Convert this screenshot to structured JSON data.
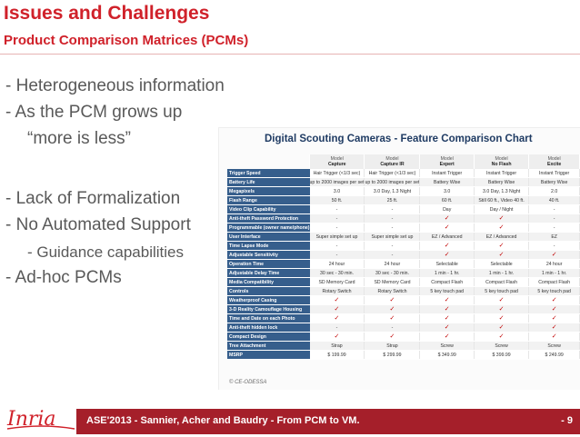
{
  "title": "Issues and Challenges",
  "subtitle": "Product Comparison Matrices (PCMs)",
  "bullets": {
    "b1": "- Heterogeneous information",
    "b2": "- As the PCM grows up",
    "b3": "“more is less”",
    "b4": "- Lack of Formalization",
    "b5": "- No Automated Support",
    "b6": "- Guidance capabilities",
    "b7": "- Ad-hoc PCMs"
  },
  "chart": {
    "title": "Digital Scouting Cameras - Feature Comparison Chart",
    "model_word": "Model",
    "models": [
      "Capture",
      "Capture IR",
      "Expert",
      "No Flash",
      "Excite"
    ],
    "rows": [
      {
        "label": "Trigger Speed",
        "values": [
          "Hair Trigger (<1/3 sec)",
          "Hair Trigger (<1/3 sec)",
          "Instant Trigger",
          "Instant Trigger",
          "Instant Trigger"
        ]
      },
      {
        "label": "Battery Life",
        "values": [
          "up to 2000 images per set",
          "up to 2000 images per set",
          "Battery Wise",
          "Battery Wise",
          "Battery Wise"
        ]
      },
      {
        "label": "Megapixels",
        "values": [
          "3.0",
          "3.0 Day, 1.3 Night",
          "3.0",
          "3.0 Day, 1.3 Night",
          "2.0"
        ]
      },
      {
        "label": "Flash Range",
        "values": [
          "50 ft.",
          "25 ft.",
          "60 ft.",
          "Still 60 ft., Video 40 ft.",
          "40 ft."
        ]
      },
      {
        "label": "Video Clip Capability",
        "values": [
          "-",
          "-",
          "Day",
          "Day / Night",
          "-"
        ]
      },
      {
        "label": "Anti-theft Password Protection",
        "values": [
          "-",
          "-",
          "✓",
          "✓",
          "-"
        ]
      },
      {
        "label": "Programmable (owner name/phone)",
        "values": [
          "-",
          "-",
          "✓",
          "✓",
          "-"
        ]
      },
      {
        "label": "User Interface",
        "values": [
          "Super simple set up",
          "Super simple set up",
          "EZ / Advanced",
          "EZ / Advanced",
          "EZ"
        ]
      },
      {
        "label": "Time Lapse Mode",
        "values": [
          "-",
          "-",
          "✓",
          "✓",
          "-"
        ]
      },
      {
        "label": "Adjustable Sensitivity",
        "values": [
          "-",
          "-",
          "✓",
          "✓",
          "✓"
        ]
      },
      {
        "label": "Operation Time",
        "values": [
          "24 hour",
          "24 hour",
          "Selectable",
          "Selectable",
          "24 hour"
        ]
      },
      {
        "label": "Adjustable Delay Time",
        "values": [
          "30 sec - 30 min.",
          "30 sec - 30 min.",
          "1 min - 1 hr.",
          "1 min - 1 hr.",
          "1 min - 1 hr."
        ]
      },
      {
        "label": "Media Compatibility",
        "values": [
          "SD Memory Card",
          "SD Memory Card",
          "Compact Flash",
          "Compact Flash",
          "Compact Flash"
        ]
      },
      {
        "label": "Controls",
        "values": [
          "Rotary Switch",
          "Rotary Switch",
          "5 key touch pad",
          "5 key touch pad",
          "5 key touch pad"
        ]
      },
      {
        "label": "Weatherproof Casing",
        "values": [
          "✓",
          "✓",
          "✓",
          "✓",
          "✓"
        ]
      },
      {
        "label": "3-D Reality Camouflage Housing",
        "values": [
          "✓",
          "✓",
          "✓",
          "✓",
          "✓"
        ]
      },
      {
        "label": "Time and Date on each Photo",
        "values": [
          "✓",
          "✓",
          "✓",
          "✓",
          "✓"
        ]
      },
      {
        "label": "Anti-theft hidden lock",
        "values": [
          "-",
          "-",
          "✓",
          "✓",
          "✓"
        ]
      },
      {
        "label": "Compact Design",
        "values": [
          "✓",
          "✓",
          "✓",
          "✓",
          "✓"
        ]
      },
      {
        "label": "Tree Attachment",
        "values": [
          "Strap",
          "Strap",
          "Screw",
          "Screw",
          "Screw"
        ]
      },
      {
        "label": "MSRP",
        "values": [
          "$ 199.99",
          "$ 299.99",
          "$ 349.99",
          "$ 399.99",
          "$ 249.99"
        ]
      }
    ]
  },
  "footer": {
    "text": "ASE'2013 - Sannier, Acher and Baudry - From PCM to VM.",
    "page": "- 9",
    "logo_text": "Inria"
  },
  "colors": {
    "title": "#d0212a",
    "footer_bar": "#a51f2a",
    "row_label_bg": "#365e8c",
    "check": "#c00000"
  }
}
